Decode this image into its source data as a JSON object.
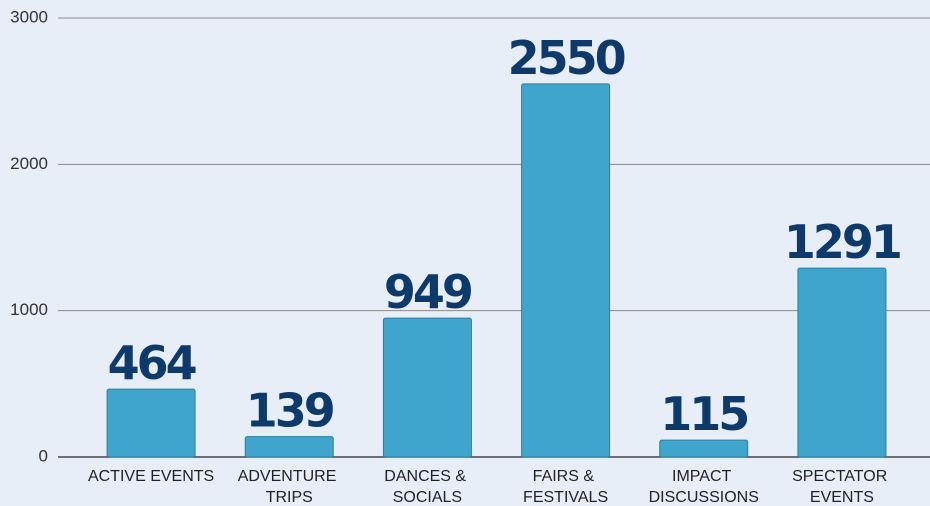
{
  "chart_data": {
    "type": "bar",
    "categories": [
      "ACTIVE EVENTS",
      "ADVENTURE TRIPS",
      "DANCES & SOCIALS",
      "FAIRS & FESTIVALS",
      "IMPACT DISCUSSIONS",
      "SPECTATOR EVENTS"
    ],
    "values": [
      464,
      139,
      949,
      2550,
      115,
      1291
    ],
    "color": "#3fa5cc",
    "ylim": [
      0,
      3000
    ],
    "yticks": [
      0,
      1000,
      2000,
      3000
    ],
    "grid": true
  }
}
